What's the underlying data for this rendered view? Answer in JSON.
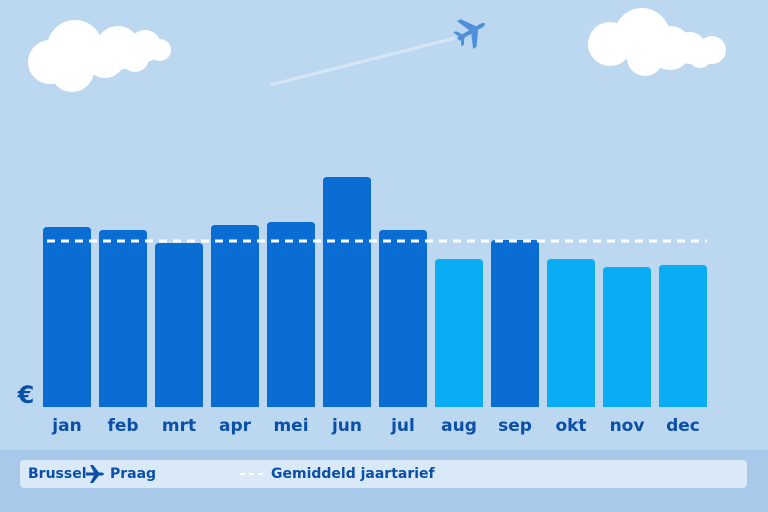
{
  "chart_data": {
    "type": "bar",
    "y_label": "€",
    "categories": [
      "jan",
      "feb",
      "mrt",
      "apr",
      "mei",
      "jun",
      "jul",
      "aug",
      "sep",
      "okt",
      "nov",
      "dec"
    ],
    "values": [
      180,
      177,
      164,
      182,
      185,
      230,
      177,
      148,
      167,
      148,
      140,
      142
    ],
    "colors": [
      "#0a6dd3",
      "#0a6dd3",
      "#0a6dd3",
      "#0a6dd3",
      "#0a6dd3",
      "#0a6dd3",
      "#0a6dd3",
      "#0aacf4",
      "#0a6dd3",
      "#0aacf4",
      "#0aacf4",
      "#0aacf4"
    ],
    "average": 166,
    "average_color": "#ffffff",
    "ylim": [
      0,
      250
    ],
    "legend": {
      "origin": "Brussel",
      "destination": "Praag",
      "average_label": "Gemiddeld jaartarief"
    }
  }
}
